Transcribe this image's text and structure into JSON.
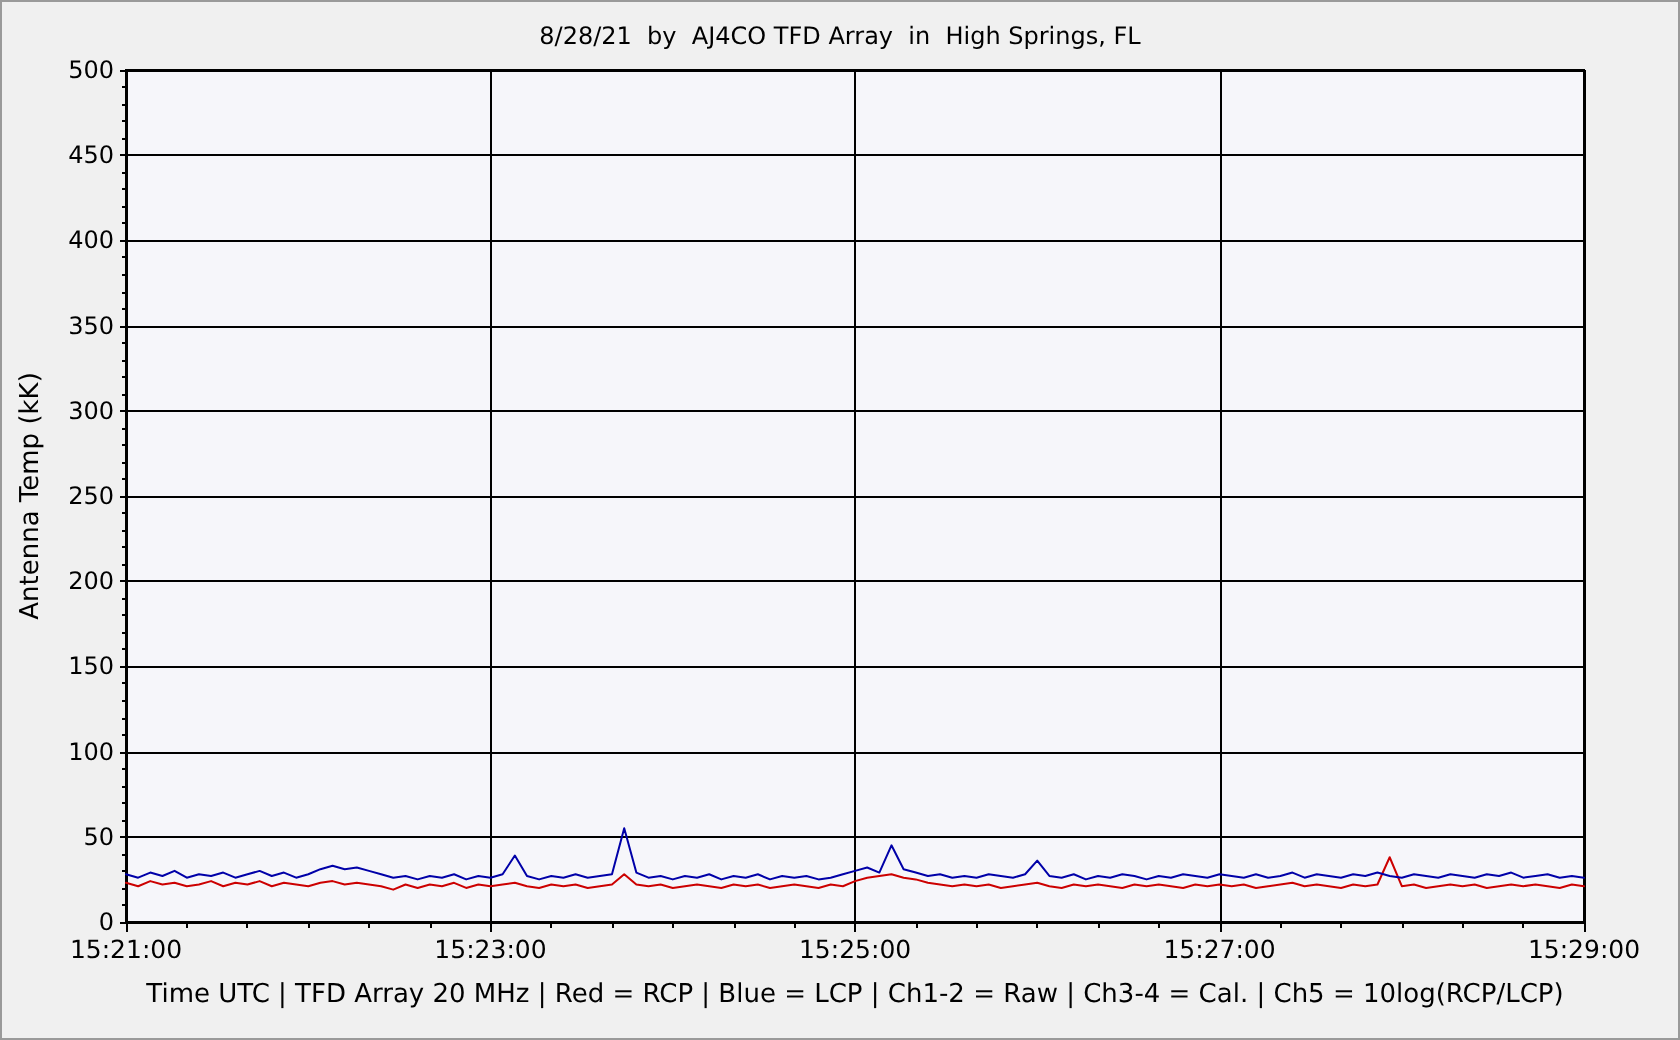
{
  "chart_data": {
    "type": "line",
    "title": "8/28/21  by  AJ4CO TFD Array  in  High Springs, FL",
    "xlabel": "Time UTC | TFD Array 20 MHz | Red = RCP | Blue = LCP | Ch1-2 = Raw | Ch3-4 = Cal. | Ch5 = 10log(RCP/LCP)",
    "ylabel": "Antenna Temp (kK)",
    "x": [
      15.35,
      15.35111,
      15.35222,
      15.35333,
      15.35444,
      15.35556,
      15.35667,
      15.35778,
      15.35889,
      15.36,
      15.36111,
      15.36222,
      15.36333,
      15.36444,
      15.36556,
      15.36667,
      15.36778,
      15.36889,
      15.37,
      15.37111,
      15.37222,
      15.37333,
      15.37444,
      15.37556,
      15.37667,
      15.37778,
      15.37889,
      15.38,
      15.38111,
      15.38222,
      15.38333,
      15.38444,
      15.38556,
      15.38667,
      15.38778,
      15.38889,
      15.39,
      15.39111,
      15.39222,
      15.39333,
      15.39444,
      15.39556,
      15.39667,
      15.39778,
      15.39889,
      15.4,
      15.40111,
      15.40222,
      15.40333,
      15.40444,
      15.40556,
      15.40667,
      15.40778,
      15.40889,
      15.41,
      15.41111,
      15.41222,
      15.41333,
      15.41444,
      15.41556,
      15.41667,
      15.41778,
      15.41889,
      15.42,
      15.42111,
      15.42222,
      15.42333,
      15.42444,
      15.42556,
      15.42667,
      15.42778,
      15.42889,
      15.43,
      15.43111,
      15.43222,
      15.43333,
      15.43444,
      15.43556,
      15.43667,
      15.43778,
      15.43889,
      15.44,
      15.44111,
      15.44222,
      15.44333,
      15.44444,
      15.44556,
      15.44667,
      15.44778,
      15.44889,
      15.45,
      15.45111,
      15.45222,
      15.45333,
      15.45444,
      15.45556,
      15.45667,
      15.45778,
      15.45889,
      15.46,
      15.46111,
      15.46222,
      15.46333,
      15.46444,
      15.46556,
      15.46667,
      15.46778,
      15.46889,
      15.47,
      15.47111,
      15.47222,
      15.47333,
      15.47444,
      15.47556,
      15.47667,
      15.47778,
      15.47889,
      15.48,
      15.48111,
      15.48222,
      15.48333
    ],
    "series": [
      {
        "color": "#cc0000",
        "values": [
          23,
          21,
          24,
          22,
          23,
          21,
          22,
          24,
          21,
          23,
          22,
          24,
          21,
          23,
          22,
          21,
          23,
          24,
          22,
          23,
          22,
          21,
          19,
          22,
          20,
          22,
          21,
          23,
          20,
          22,
          21,
          22,
          23,
          21,
          20,
          22,
          21,
          22,
          20,
          21,
          22,
          28,
          22,
          21,
          22,
          20,
          21,
          22,
          21,
          20,
          22,
          21,
          22,
          20,
          21,
          22,
          21,
          20,
          22,
          21,
          24,
          26,
          27,
          28,
          26,
          25,
          23,
          22,
          21,
          22,
          21,
          22,
          20,
          21,
          22,
          23,
          21,
          20,
          22,
          21,
          22,
          21,
          20,
          22,
          21,
          22,
          21,
          20,
          22,
          21,
          22,
          21,
          22,
          20,
          21,
          22,
          23,
          21,
          22,
          21,
          20,
          22,
          21,
          22,
          38,
          21,
          22,
          20,
          21,
          22,
          21,
          22,
          20,
          21,
          22,
          21,
          22,
          21,
          20,
          22,
          21
        ]
      },
      {
        "color": "#0000a8",
        "values": [
          28,
          26,
          29,
          27,
          30,
          26,
          28,
          27,
          29,
          26,
          28,
          30,
          27,
          29,
          26,
          28,
          31,
          33,
          31,
          32,
          30,
          28,
          26,
          27,
          25,
          27,
          26,
          28,
          25,
          27,
          26,
          28,
          39,
          27,
          25,
          27,
          26,
          28,
          26,
          27,
          28,
          55,
          29,
          26,
          27,
          25,
          27,
          26,
          28,
          25,
          27,
          26,
          28,
          25,
          27,
          26,
          27,
          25,
          26,
          28,
          30,
          32,
          29,
          45,
          31,
          29,
          27,
          28,
          26,
          27,
          26,
          28,
          27,
          26,
          28,
          36,
          27,
          26,
          28,
          25,
          27,
          26,
          28,
          27,
          25,
          27,
          26,
          28,
          27,
          26,
          28,
          27,
          26,
          28,
          26,
          27,
          29,
          26,
          28,
          27,
          26,
          28,
          27,
          29,
          27,
          26,
          28,
          27,
          26,
          28,
          27,
          26,
          28,
          27,
          29,
          26,
          27,
          28,
          26,
          27,
          26
        ]
      }
    ],
    "xlim": [
      15.35,
      15.48333
    ],
    "xticks": [
      {
        "value": 15.35,
        "label": "15:21:00"
      },
      {
        "value": 15.38333,
        "label": "15:23:00"
      },
      {
        "value": 15.41667,
        "label": "15:25:00"
      },
      {
        "value": 15.45,
        "label": "15:27:00"
      },
      {
        "value": 15.48333,
        "label": "15:29:00"
      }
    ],
    "ylim": [
      0,
      500
    ],
    "yticks": [
      0,
      50,
      100,
      150,
      200,
      250,
      300,
      350,
      400,
      450,
      500
    ],
    "grid": true,
    "marker": "none",
    "line_style": "solid"
  }
}
